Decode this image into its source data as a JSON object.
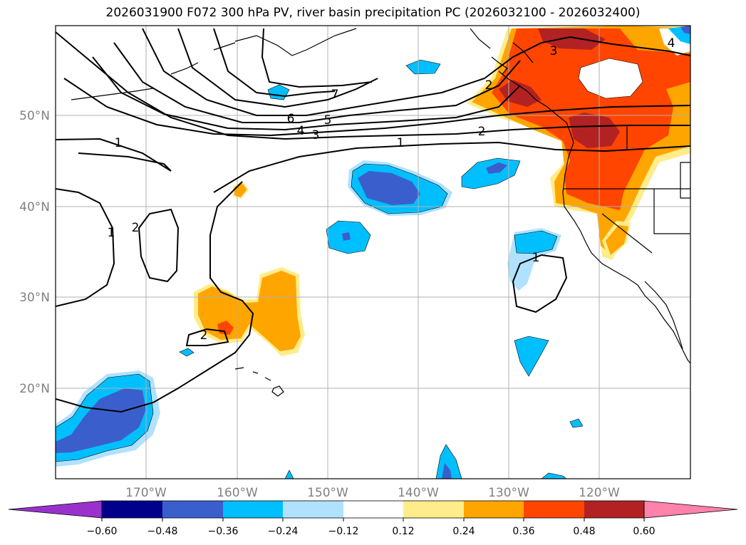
{
  "title": "2026031900 F072 300 hPa PV, river basin precipitation PC (2026032100 - 2026032400)",
  "map": {
    "lon_labels": [
      "170°W",
      "160°W",
      "150°W",
      "140°W",
      "130°W",
      "120°W"
    ],
    "lat_labels": [
      "50°N",
      "40°N",
      "30°N",
      "20°N"
    ],
    "contour_labels": [
      "7",
      "6",
      "5",
      "4",
      "3",
      "2",
      "1",
      "1",
      "2",
      "1",
      "2",
      "3",
      "4",
      "1",
      "2"
    ]
  },
  "colorbar": {
    "ticks": [
      "−0.60",
      "−0.48",
      "−0.36",
      "−0.24",
      "−0.12",
      "0.12",
      "0.24",
      "0.36",
      "0.48",
      "0.60"
    ],
    "colors": [
      "#9932CC",
      "#00008B",
      "#3A5FCD",
      "#00BFFF",
      "#B0E2FF",
      "#FFFFFF",
      "#FFEC8B",
      "#FFA500",
      "#FF4500",
      "#B22222",
      "#FF82AB"
    ]
  },
  "colors": {
    "land_outline": "#000000",
    "grid": "#b0b0b0",
    "contour": "#000000"
  }
}
